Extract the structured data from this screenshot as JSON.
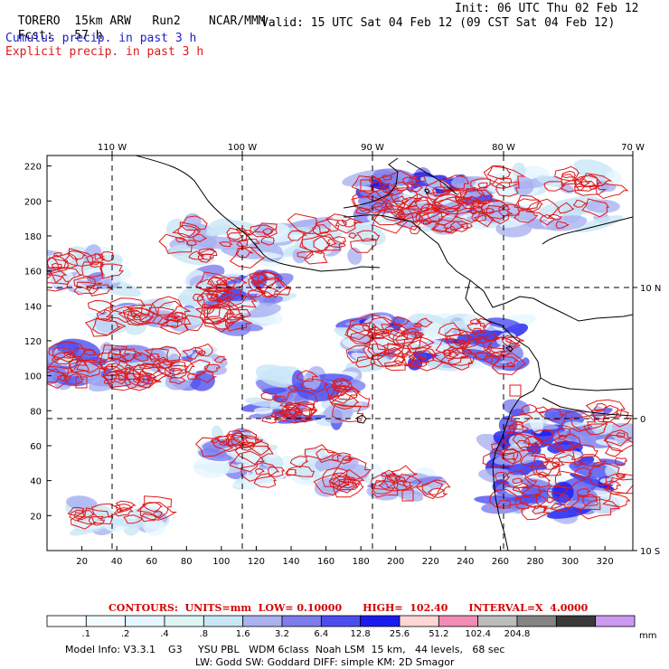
{
  "header": {
    "model": "TORERO",
    "resolution": "15km ARW",
    "run": "Run2",
    "org": "NCAR/MMM",
    "init": "Init: 06 UTC Thu 02 Feb 12",
    "fcst_label": "Fcst:",
    "fcst_value": "57 h",
    "valid": "Valid: 15 UTC Sat 04 Feb 12 (09 CST Sat 04 Feb 12)",
    "legend_cumulus": "Cumulus precip. in past 3 h",
    "legend_explicit": "Explicit precip. in past 3 h"
  },
  "colors": {
    "cumulus": "#1c1ccc",
    "explicit": "#e01818",
    "grid": "#000000"
  },
  "map": {
    "lon_labels": [
      "110 W",
      "100 W",
      "90 W",
      "80 W",
      "70 W"
    ],
    "lat_labels": [
      "10 N",
      "0",
      "10 S"
    ],
    "x_ticks": [
      "20",
      "40",
      "60",
      "80",
      "100",
      "120",
      "140",
      "160",
      "180",
      "200",
      "220",
      "240",
      "260",
      "280",
      "300",
      "320"
    ],
    "y_ticks": [
      "20",
      "40",
      "60",
      "80",
      "100",
      "120",
      "140",
      "160",
      "180",
      "200",
      "220"
    ]
  },
  "contour_info": "CONTOURS:  UNITS=mm  LOW= 0.10000      HIGH=  102.40      INTERVAL=X  4.0000",
  "colorbar": {
    "unit": "mm",
    "labels": [
      ".1",
      ".2",
      ".4",
      ".8",
      "1.6",
      "3.2",
      "6.4",
      "12.8",
      "25.6",
      "51.2",
      "102.4",
      "204.8"
    ],
    "colors": [
      "#ffffff",
      "#f4fbff",
      "#e6f6ff",
      "#ddf4f3",
      "#c9e6f6",
      "#aab2f0",
      "#7d7ded",
      "#4e4ef0",
      "#1b1bf0",
      "#ffd6d6",
      "#f28bb5",
      "#bcbcbc",
      "#848484",
      "#3a3a3a",
      "#cc99f2"
    ]
  },
  "footer": {
    "line1": "Model Info: V3.3.1    G3     YSU PBL   WDM 6class  Noah LSM  15 km,   44 levels,   68 sec",
    "line2": "LW: Godd SW: Goddard DIFF: simple KM: 2D Smagor"
  }
}
